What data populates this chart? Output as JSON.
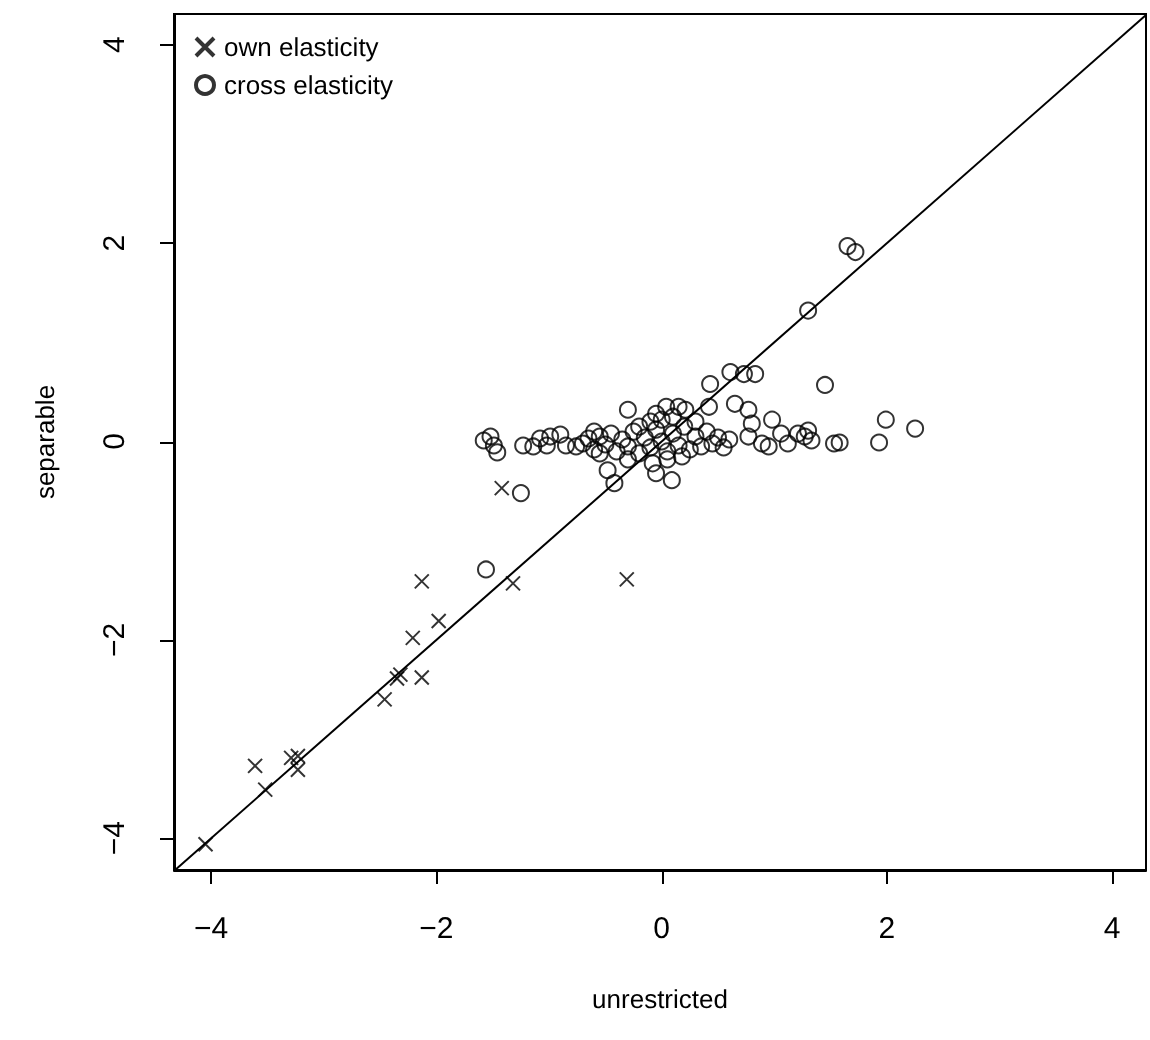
{
  "chart_data": {
    "type": "scatter",
    "xlabel": "unrestricted",
    "ylabel": "separable",
    "xlim": [
      -4.33,
      4.3
    ],
    "ylim": [
      -4.32,
      4.31
    ],
    "xticks": [
      -4,
      -2,
      0,
      2,
      4
    ],
    "yticks": [
      -4,
      -2,
      0,
      2,
      4
    ],
    "grid": false,
    "legend": "top left",
    "series": [
      {
        "name": "own elasticity",
        "color": "#000000",
        "marker": "cross",
        "x": [
          -4.05,
          -3.61,
          -3.52,
          -3.29,
          -3.23,
          -3.23,
          -2.46,
          -2.35,
          -2.32,
          -2.13,
          -2.21,
          -1.98,
          -2.13,
          -1.32,
          -1.42,
          -0.31
        ],
        "values": [
          -4.06,
          -3.27,
          -3.51,
          -3.19,
          -3.17,
          -3.31,
          -2.6,
          -2.39,
          -2.35,
          -2.38,
          -1.98,
          -1.81,
          -1.41,
          -1.43,
          -0.47,
          -1.39
        ]
      },
      {
        "name": "cross elasticity",
        "color": "#000000",
        "marker": "circle",
        "x": [
          -1.56,
          -1.25,
          -0.42,
          1.3,
          1.45,
          0.43,
          0.61,
          0.73,
          0.83,
          -1.58,
          -1.52,
          -1.46,
          -1.49,
          -1.23,
          -1.14,
          -1.08,
          -0.99,
          -0.9,
          -1.02,
          -0.85,
          -0.76,
          -0.3,
          -0.48,
          -0.05,
          0.09,
          -0.05,
          0.04,
          0.15,
          0.21,
          0.42,
          0.65,
          0.77,
          0.8,
          0.98,
          1.06,
          1.21,
          1.33,
          0.77,
          0.89,
          0.95,
          1.12,
          1.27,
          1.53,
          1.65,
          1.72,
          1.99,
          2.25,
          1.93,
          1.58,
          1.3,
          -0.7,
          -0.65,
          -0.6,
          -0.55,
          -0.5,
          -0.45,
          -0.4,
          -0.35,
          -0.3,
          -0.25,
          -0.2,
          -0.15,
          -0.1,
          -0.05,
          0,
          0.05,
          0.1,
          0.15,
          0.2,
          0.25,
          0.3,
          0.35,
          0.4,
          0.45,
          0.5,
          0.55,
          0.6,
          -0.1,
          0,
          0.1,
          -0.2,
          0.05,
          -0.3,
          -0.08,
          0.3,
          -0.55,
          0.18,
          -0.6
        ],
        "values": [
          -1.29,
          -0.52,
          -0.42,
          1.32,
          0.57,
          0.58,
          0.7,
          0.68,
          0.68,
          0.01,
          0.05,
          -0.11,
          -0.04,
          -0.04,
          -0.05,
          0.03,
          0.05,
          0.07,
          -0.04,
          -0.04,
          -0.05,
          0.32,
          -0.29,
          -0.32,
          -0.39,
          0.28,
          0.35,
          0.35,
          0.32,
          0.35,
          0.38,
          0.32,
          0.18,
          0.22,
          0.08,
          0.08,
          0.01,
          0.05,
          -0.02,
          -0.05,
          -0.02,
          0.05,
          -0.02,
          1.97,
          1.91,
          0.22,
          0.13,
          -0.01,
          -0.01,
          0.11,
          -0.02,
          0.03,
          -0.08,
          0.05,
          -0.03,
          0.08,
          -0.1,
          0.02,
          -0.05,
          0.1,
          -0.12,
          0.04,
          -0.06,
          0.12,
          0,
          -0.1,
          0.08,
          -0.04,
          0.15,
          -0.08,
          0.05,
          -0.05,
          0.1,
          -0.02,
          0.04,
          -0.06,
          0.02,
          0.2,
          0.22,
          0.25,
          0.15,
          -0.18,
          -0.18,
          -0.22,
          0.2,
          -0.12,
          -0.15,
          0.1
        ]
      },
      {
        "type": "line",
        "color": "#000000",
        "marker": "none",
        "x": [
          -4.32,
          4.3
        ],
        "values": [
          -4.32,
          4.3
        ]
      }
    ]
  }
}
